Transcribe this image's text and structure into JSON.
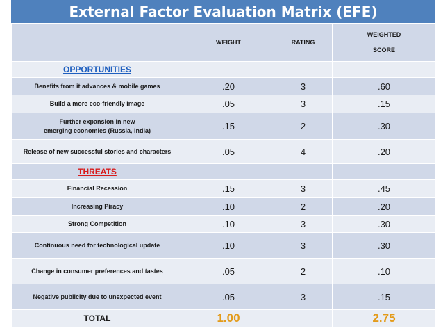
{
  "title": "External Factor Evaluation Matrix  (EFE)",
  "headers": {
    "weight": "WEIGHT",
    "rating": "RATING",
    "score_line1": "WEIGHTED",
    "score_line2": "SCORE"
  },
  "opportunities": {
    "label": "OPPORTUNITIES",
    "rows": [
      {
        "factor": [
          "Benefits from it advances & mobile games"
        ],
        "weight": ".20",
        "rating": "3",
        "score": ".60"
      },
      {
        "factor": [
          "Build a more eco-friendly image"
        ],
        "weight": ".05",
        "rating": "3",
        "score": ".15"
      },
      {
        "factor": [
          "Further expansion in new",
          "emerging economies (Russia, India)"
        ],
        "weight": ".15",
        "rating": "2",
        "score": ".30"
      },
      {
        "factor": [
          "Release of new successful stories and characters"
        ],
        "weight": ".05",
        "rating": "4",
        "score": ".20"
      }
    ]
  },
  "threats": {
    "label": "THREATS",
    "rows": [
      {
        "factor": [
          "Financial Recession"
        ],
        "weight": ".15",
        "rating": "3",
        "score": ".45"
      },
      {
        "factor": [
          "Increasing Piracy"
        ],
        "weight": ".10",
        "rating": "2",
        "score": ".20"
      },
      {
        "factor": [
          "Strong Competition"
        ],
        "weight": ".10",
        "rating": "3",
        "score": ".30"
      },
      {
        "factor": [
          "Continuous need for technological update"
        ],
        "weight": ".10",
        "rating": "3",
        "score": ".30"
      },
      {
        "factor": [
          "Change in consumer preferences and tastes"
        ],
        "weight": ".05",
        "rating": "2",
        "score": ".10"
      },
      {
        "factor": [
          "Negative publicity due to unexpected event"
        ],
        "weight": ".05",
        "rating": "3",
        "score": ".15"
      }
    ]
  },
  "total": {
    "label": "TOTAL",
    "weight": "1.00",
    "score": "2.75"
  },
  "colors": {
    "title_bg": "#4f81bd",
    "row_dark": "#d0d8e8",
    "row_light": "#e9edf4",
    "opportunities_label": "#1f5fbf",
    "threats_label": "#d81b1b",
    "total_values": "#e39b1a"
  }
}
